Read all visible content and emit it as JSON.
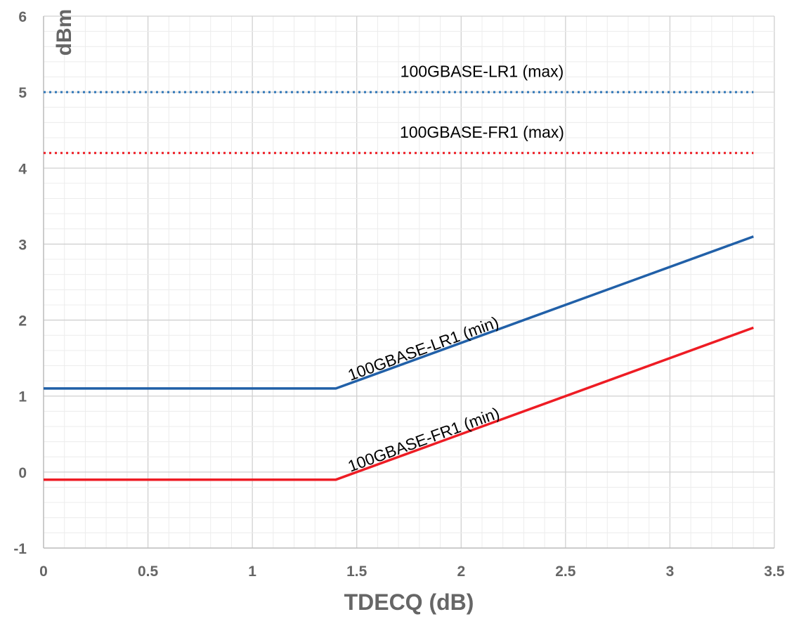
{
  "chart_data": {
    "type": "line",
    "title": "",
    "xlabel": "TDECQ (dB)",
    "ylabel": "dBm",
    "xlim": [
      0,
      3.5
    ],
    "ylim": [
      -1,
      6
    ],
    "x_ticks": [
      "0",
      "0.5",
      "1",
      "1.5",
      "2",
      "2.5",
      "3",
      "3.5"
    ],
    "y_ticks": [
      "-1",
      "0",
      "1",
      "2",
      "3",
      "4",
      "5",
      "6"
    ],
    "grid": true,
    "minor_grid": true,
    "series": [
      {
        "id": "lr1-max",
        "style": "dotted",
        "color": "#2e75b6",
        "x": [
          0,
          3.4
        ],
        "y": [
          5,
          5
        ]
      },
      {
        "id": "fr1-max",
        "style": "dotted",
        "color": "#ee1c24",
        "x": [
          0,
          3.4
        ],
        "y": [
          4.2,
          4.2
        ]
      },
      {
        "id": "lr1-min",
        "style": "solid",
        "color": "#2160a8",
        "x": [
          0,
          1.4,
          3.4
        ],
        "y": [
          1.1,
          1.1,
          3.1
        ]
      },
      {
        "id": "fr1-min",
        "style": "solid",
        "color": "#ee1c24",
        "x": [
          0,
          1.4,
          3.4
        ],
        "y": [
          -0.1,
          -0.1,
          1.9
        ]
      }
    ],
    "annotations": [
      {
        "id": "lr1-max-label",
        "text": "100GBASE-LR1 (max)",
        "x": 2.1,
        "y": 5.2,
        "rotated": false
      },
      {
        "id": "fr1-max-label",
        "text": "100GBASE-FR1 (max)",
        "x": 2.1,
        "y": 4.4,
        "rotated": false
      },
      {
        "id": "lr1-min-label",
        "text": "100GBASE-LR1 (min)",
        "x": 1.47,
        "y": 1.2,
        "rotated": true
      },
      {
        "id": "fr1-min-label",
        "text": "100GBASE-FR1 (min)",
        "x": 1.47,
        "y": 0.0,
        "rotated": true
      }
    ]
  }
}
